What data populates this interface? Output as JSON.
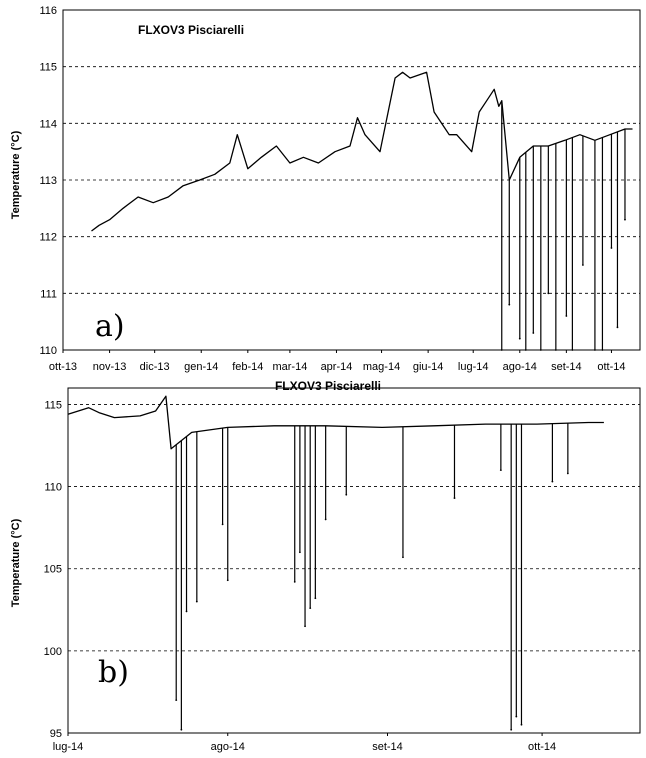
{
  "chart_data": [
    {
      "type": "line",
      "panel_label": "a)",
      "title": "FLXOV3 Pisciarelli",
      "ylabel": "Temperature (°C)",
      "xlabel": "",
      "ylim": [
        110,
        116
      ],
      "yticks": [
        "110",
        "111",
        "112",
        "113",
        "114",
        "115",
        "116"
      ],
      "xticks": [
        "ott-13",
        "nov-13",
        "dic-13",
        "gen-14",
        "feb-14",
        "mar-14",
        "apr-14",
        "mag-14",
        "giu-14",
        "lug-14",
        "ago-14",
        "set-14",
        "ott-14"
      ],
      "grid": true,
      "series": [
        {
          "color": "#000000",
          "x": [
            "2013-10-20",
            "2013-10-25",
            "2013-11-01",
            "2013-11-10",
            "2013-11-20",
            "2013-11-30",
            "2013-12-10",
            "2013-12-20",
            "2013-12-31",
            "2014-01-10",
            "2014-01-20",
            "2014-01-25",
            "2014-02-01",
            "2014-02-10",
            "2014-02-20",
            "2014-03-01",
            "2014-03-10",
            "2014-03-20",
            "2014-03-31",
            "2014-04-10",
            "2014-04-15",
            "2014-04-20",
            "2014-04-30",
            "2014-05-10",
            "2014-05-15",
            "2014-05-20",
            "2014-05-31",
            "2014-06-05",
            "2014-06-15",
            "2014-06-20",
            "2014-06-30",
            "2014-07-05",
            "2014-07-10",
            "2014-07-15",
            "2014-07-18",
            "2014-07-20",
            "2014-07-25",
            "2014-08-01",
            "2014-08-10",
            "2014-08-20",
            "2014-08-31",
            "2014-09-10",
            "2014-09-20",
            "2014-09-30",
            "2014-10-10",
            "2014-10-15"
          ],
          "y": [
            112.1,
            112.2,
            112.3,
            112.5,
            112.7,
            112.6,
            112.7,
            112.9,
            113.0,
            113.1,
            113.3,
            113.8,
            113.2,
            113.4,
            113.6,
            113.3,
            113.4,
            113.3,
            113.5,
            113.6,
            114.1,
            113.8,
            113.5,
            114.8,
            114.9,
            114.8,
            114.9,
            114.2,
            113.8,
            113.8,
            113.5,
            114.2,
            114.4,
            114.6,
            114.3,
            114.4,
            113.0,
            113.4,
            113.6,
            113.6,
            113.7,
            113.8,
            113.7,
            113.8,
            113.9,
            113.9
          ],
          "dips": [
            {
              "x": "2014-07-20",
              "y": 110.0
            },
            {
              "x": "2014-07-25",
              "y": 110.8
            },
            {
              "x": "2014-08-01",
              "y": 110.2
            },
            {
              "x": "2014-08-05",
              "y": 110.0
            },
            {
              "x": "2014-08-10",
              "y": 110.3
            },
            {
              "x": "2014-08-15",
              "y": 110.0
            },
            {
              "x": "2014-08-20",
              "y": 111.0
            },
            {
              "x": "2014-08-25",
              "y": 110.0
            },
            {
              "x": "2014-09-01",
              "y": 110.6
            },
            {
              "x": "2014-09-05",
              "y": 110.0
            },
            {
              "x": "2014-09-12",
              "y": 111.5
            },
            {
              "x": "2014-09-20",
              "y": 110.0
            },
            {
              "x": "2014-09-25",
              "y": 110.0
            },
            {
              "x": "2014-10-01",
              "y": 111.8
            },
            {
              "x": "2014-10-05",
              "y": 110.4
            },
            {
              "x": "2014-10-10",
              "y": 112.3
            }
          ]
        }
      ]
    },
    {
      "type": "line",
      "panel_label": "b)",
      "title": "FLXOV3 Pisciarelli",
      "ylabel": "Temperature (°C)",
      "xlabel": "",
      "ylim": [
        95,
        116
      ],
      "yticks": [
        "95",
        "100",
        "105",
        "110",
        "115"
      ],
      "xticks": [
        "lug-14",
        "ago-14",
        "set-14",
        "ott-14"
      ],
      "grid": true,
      "series": [
        {
          "color": "#000000",
          "x": [
            "2014-07-01",
            "2014-07-05",
            "2014-07-07",
            "2014-07-10",
            "2014-07-15",
            "2014-07-18",
            "2014-07-20",
            "2014-07-21",
            "2014-07-25",
            "2014-08-01",
            "2014-08-10",
            "2014-08-20",
            "2014-08-31",
            "2014-09-10",
            "2014-09-20",
            "2014-09-30",
            "2014-10-10",
            "2014-10-13"
          ],
          "y": [
            114.4,
            114.8,
            114.5,
            114.2,
            114.3,
            114.6,
            115.5,
            112.3,
            113.3,
            113.6,
            113.7,
            113.7,
            113.6,
            113.7,
            113.8,
            113.8,
            113.9,
            113.9
          ],
          "dips": [
            {
              "x": "2014-07-22",
              "y": 97.0
            },
            {
              "x": "2014-07-23",
              "y": 95.2
            },
            {
              "x": "2014-07-24",
              "y": 102.4
            },
            {
              "x": "2014-07-26",
              "y": 103.0
            },
            {
              "x": "2014-07-31",
              "y": 107.7
            },
            {
              "x": "2014-08-01",
              "y": 104.3
            },
            {
              "x": "2014-08-14",
              "y": 104.2
            },
            {
              "x": "2014-08-15",
              "y": 106.0
            },
            {
              "x": "2014-08-16",
              "y": 101.5
            },
            {
              "x": "2014-08-17",
              "y": 102.6
            },
            {
              "x": "2014-08-18",
              "y": 103.2
            },
            {
              "x": "2014-08-20",
              "y": 108.0
            },
            {
              "x": "2014-08-24",
              "y": 109.5
            },
            {
              "x": "2014-09-04",
              "y": 105.7
            },
            {
              "x": "2014-09-14",
              "y": 109.3
            },
            {
              "x": "2014-09-23",
              "y": 111.0
            },
            {
              "x": "2014-09-25",
              "y": 95.2
            },
            {
              "x": "2014-09-26",
              "y": 96.0
            },
            {
              "x": "2014-09-27",
              "y": 95.5
            },
            {
              "x": "2014-10-03",
              "y": 110.3
            },
            {
              "x": "2014-10-06",
              "y": 110.8
            }
          ]
        }
      ]
    }
  ]
}
